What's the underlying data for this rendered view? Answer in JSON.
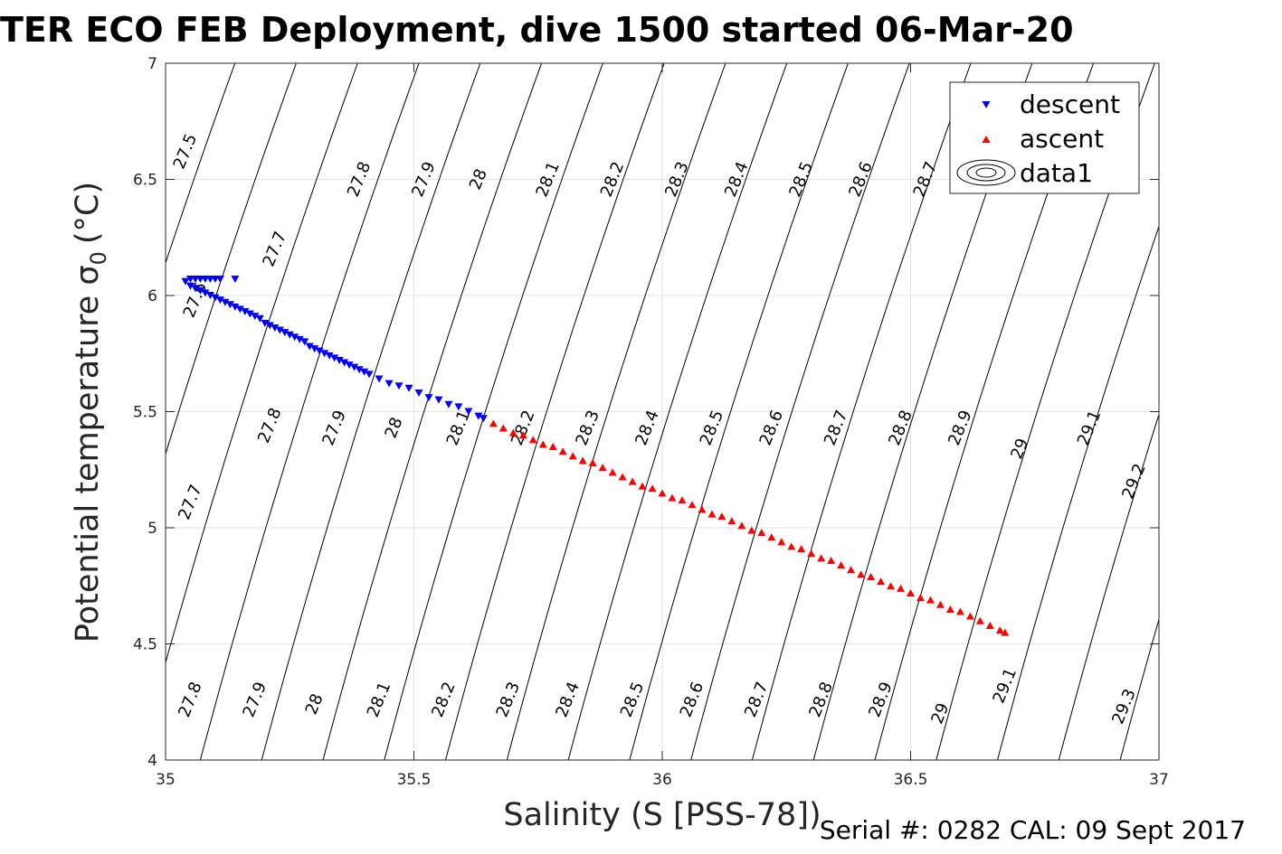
{
  "chart_data": {
    "type": "scatter",
    "title": "TER ECO FEB Deployment, dive 1500 started 06-Mar-20",
    "xlabel": "Salinity (S [PSS-78])",
    "ylabel_main": "Potential temperature σ",
    "ylabel_sub": "0",
    "ylabel_unit": "(°C)",
    "xlim": [
      35,
      37
    ],
    "ylim": [
      4,
      7
    ],
    "x_ticks": [
      35,
      35.5,
      36,
      36.5,
      37
    ],
    "x_tick_labels": [
      "35",
      "35.5",
      "36",
      "36.5",
      "37"
    ],
    "y_ticks": [
      4,
      4.5,
      5,
      5.5,
      6,
      6.5,
      7
    ],
    "y_tick_labels": [
      "4",
      "4.5",
      "5",
      "5.5",
      "6",
      "6.5",
      "7"
    ],
    "grid": true,
    "legend_position": "top-right",
    "legend": [
      "descent",
      "ascent",
      "data1"
    ],
    "contour_color": "#000000",
    "contour_levels": [
      27.5,
      27.6,
      27.7,
      27.8,
      27.9,
      28.0,
      28.1,
      28.2,
      28.3,
      28.4,
      28.5,
      28.6,
      28.7,
      28.8,
      28.9,
      29.0,
      29.1,
      29.2,
      29.3
    ],
    "contour_label_positions": [
      {
        "text": "27.5",
        "x": 35.04,
        "y": 6.62
      },
      {
        "text": "27.6",
        "x": 35.06,
        "y": 5.98
      },
      {
        "text": "27.7",
        "x": 35.22,
        "y": 6.2
      },
      {
        "text": "27.7",
        "x": 35.05,
        "y": 5.11
      },
      {
        "text": "27.8",
        "x": 35.39,
        "y": 6.5
      },
      {
        "text": "27.8",
        "x": 35.21,
        "y": 5.44
      },
      {
        "text": "27.8",
        "x": 35.05,
        "y": 4.26
      },
      {
        "text": "27.9",
        "x": 35.52,
        "y": 6.5
      },
      {
        "text": "27.9",
        "x": 35.34,
        "y": 5.43
      },
      {
        "text": "27.9",
        "x": 35.18,
        "y": 4.26
      },
      {
        "text": "28",
        "x": 35.63,
        "y": 6.5
      },
      {
        "text": "28",
        "x": 35.46,
        "y": 5.43
      },
      {
        "text": "28",
        "x": 35.3,
        "y": 4.24
      },
      {
        "text": "28.1",
        "x": 35.77,
        "y": 6.5
      },
      {
        "text": "28.1",
        "x": 35.59,
        "y": 5.43
      },
      {
        "text": "28.1",
        "x": 35.43,
        "y": 4.26
      },
      {
        "text": "28.2",
        "x": 35.9,
        "y": 6.5
      },
      {
        "text": "28.2",
        "x": 35.72,
        "y": 5.43
      },
      {
        "text": "28.2",
        "x": 35.56,
        "y": 4.26
      },
      {
        "text": "28.3",
        "x": 36.03,
        "y": 6.5
      },
      {
        "text": "28.3",
        "x": 35.85,
        "y": 5.43
      },
      {
        "text": "28.3",
        "x": 35.69,
        "y": 4.26
      },
      {
        "text": "28.4",
        "x": 36.15,
        "y": 6.5
      },
      {
        "text": "28.4",
        "x": 35.97,
        "y": 5.43
      },
      {
        "text": "28.4",
        "x": 35.81,
        "y": 4.26
      },
      {
        "text": "28.5",
        "x": 36.28,
        "y": 6.5
      },
      {
        "text": "28.5",
        "x": 36.1,
        "y": 5.43
      },
      {
        "text": "28.5",
        "x": 35.94,
        "y": 4.26
      },
      {
        "text": "28.6",
        "x": 36.4,
        "y": 6.5
      },
      {
        "text": "28.6",
        "x": 36.22,
        "y": 5.43
      },
      {
        "text": "28.6",
        "x": 36.06,
        "y": 4.26
      },
      {
        "text": "28.7",
        "x": 36.53,
        "y": 6.5
      },
      {
        "text": "28.7",
        "x": 36.35,
        "y": 5.43
      },
      {
        "text": "28.7",
        "x": 36.19,
        "y": 4.26
      },
      {
        "text": "28.8",
        "x": 36.48,
        "y": 5.43
      },
      {
        "text": "28.8",
        "x": 36.32,
        "y": 4.26
      },
      {
        "text": "28.9",
        "x": 36.6,
        "y": 5.43
      },
      {
        "text": "28.9",
        "x": 36.44,
        "y": 4.26
      },
      {
        "text": "29",
        "x": 36.72,
        "y": 5.34
      },
      {
        "text": "29",
        "x": 36.56,
        "y": 4.2
      },
      {
        "text": "29.1",
        "x": 36.86,
        "y": 5.43
      },
      {
        "text": "29.1",
        "x": 36.69,
        "y": 4.32
      },
      {
        "text": "29.2",
        "x": 36.95,
        "y": 5.2
      },
      {
        "text": "29.3",
        "x": 36.93,
        "y": 4.23
      }
    ],
    "series": [
      {
        "name": "descent",
        "marker": "triangle-down",
        "color": "#0000ff",
        "x": [
          35.04,
          35.05,
          35.06,
          35.07,
          35.08,
          35.09,
          35.1,
          35.11,
          35.14,
          35.05,
          35.06,
          35.07,
          35.08,
          35.09,
          35.1,
          35.11,
          35.12,
          35.13,
          35.14,
          35.15,
          35.16,
          35.17,
          35.18,
          35.19,
          35.2,
          35.21,
          35.22,
          35.23,
          35.24,
          35.25,
          35.26,
          35.27,
          35.28,
          35.29,
          35.3,
          35.31,
          35.32,
          35.33,
          35.34,
          35.35,
          35.36,
          35.37,
          35.38,
          35.39,
          35.4,
          35.41,
          35.43,
          35.45,
          35.47,
          35.49,
          35.51,
          35.53,
          35.55,
          35.57,
          35.59,
          35.61,
          35.63,
          35.64
        ],
        "y": [
          6.06,
          6.07,
          6.07,
          6.07,
          6.07,
          6.07,
          6.07,
          6.07,
          6.07,
          6.04,
          6.03,
          6.02,
          6.01,
          6.0,
          5.99,
          5.98,
          5.97,
          5.96,
          5.95,
          5.94,
          5.93,
          5.92,
          5.91,
          5.9,
          5.88,
          5.87,
          5.86,
          5.85,
          5.84,
          5.83,
          5.82,
          5.81,
          5.8,
          5.78,
          5.77,
          5.76,
          5.75,
          5.74,
          5.73,
          5.72,
          5.71,
          5.7,
          5.69,
          5.68,
          5.67,
          5.66,
          5.64,
          5.62,
          5.61,
          5.6,
          5.58,
          5.56,
          5.55,
          5.53,
          5.52,
          5.5,
          5.48,
          5.47
        ]
      },
      {
        "name": "ascent",
        "marker": "triangle-up",
        "color": "#ff0000",
        "x": [
          35.66,
          35.68,
          35.7,
          35.72,
          35.74,
          35.76,
          35.78,
          35.8,
          35.82,
          35.84,
          35.86,
          35.88,
          35.9,
          35.92,
          35.94,
          35.96,
          35.98,
          36.0,
          36.02,
          36.04,
          36.06,
          36.08,
          36.1,
          36.12,
          36.14,
          36.16,
          36.18,
          36.2,
          36.22,
          36.24,
          36.26,
          36.28,
          36.3,
          36.32,
          36.34,
          36.36,
          36.38,
          36.4,
          36.42,
          36.44,
          36.46,
          36.48,
          36.5,
          36.52,
          36.54,
          36.56,
          36.58,
          36.6,
          36.62,
          36.64,
          36.66,
          36.68,
          36.69
        ],
        "y": [
          5.45,
          5.43,
          5.41,
          5.4,
          5.38,
          5.36,
          5.35,
          5.33,
          5.31,
          5.29,
          5.28,
          5.26,
          5.24,
          5.22,
          5.2,
          5.18,
          5.17,
          5.15,
          5.13,
          5.12,
          5.1,
          5.08,
          5.06,
          5.05,
          5.03,
          5.01,
          4.99,
          4.98,
          4.96,
          4.94,
          4.92,
          4.91,
          4.89,
          4.87,
          4.86,
          4.84,
          4.82,
          4.8,
          4.79,
          4.77,
          4.75,
          4.74,
          4.72,
          4.7,
          4.69,
          4.67,
          4.65,
          4.64,
          4.62,
          4.6,
          4.58,
          4.56,
          4.55
        ]
      }
    ]
  },
  "footer": {
    "serial_text": "Serial #: 0282  CAL: 09 Sept 2017"
  }
}
